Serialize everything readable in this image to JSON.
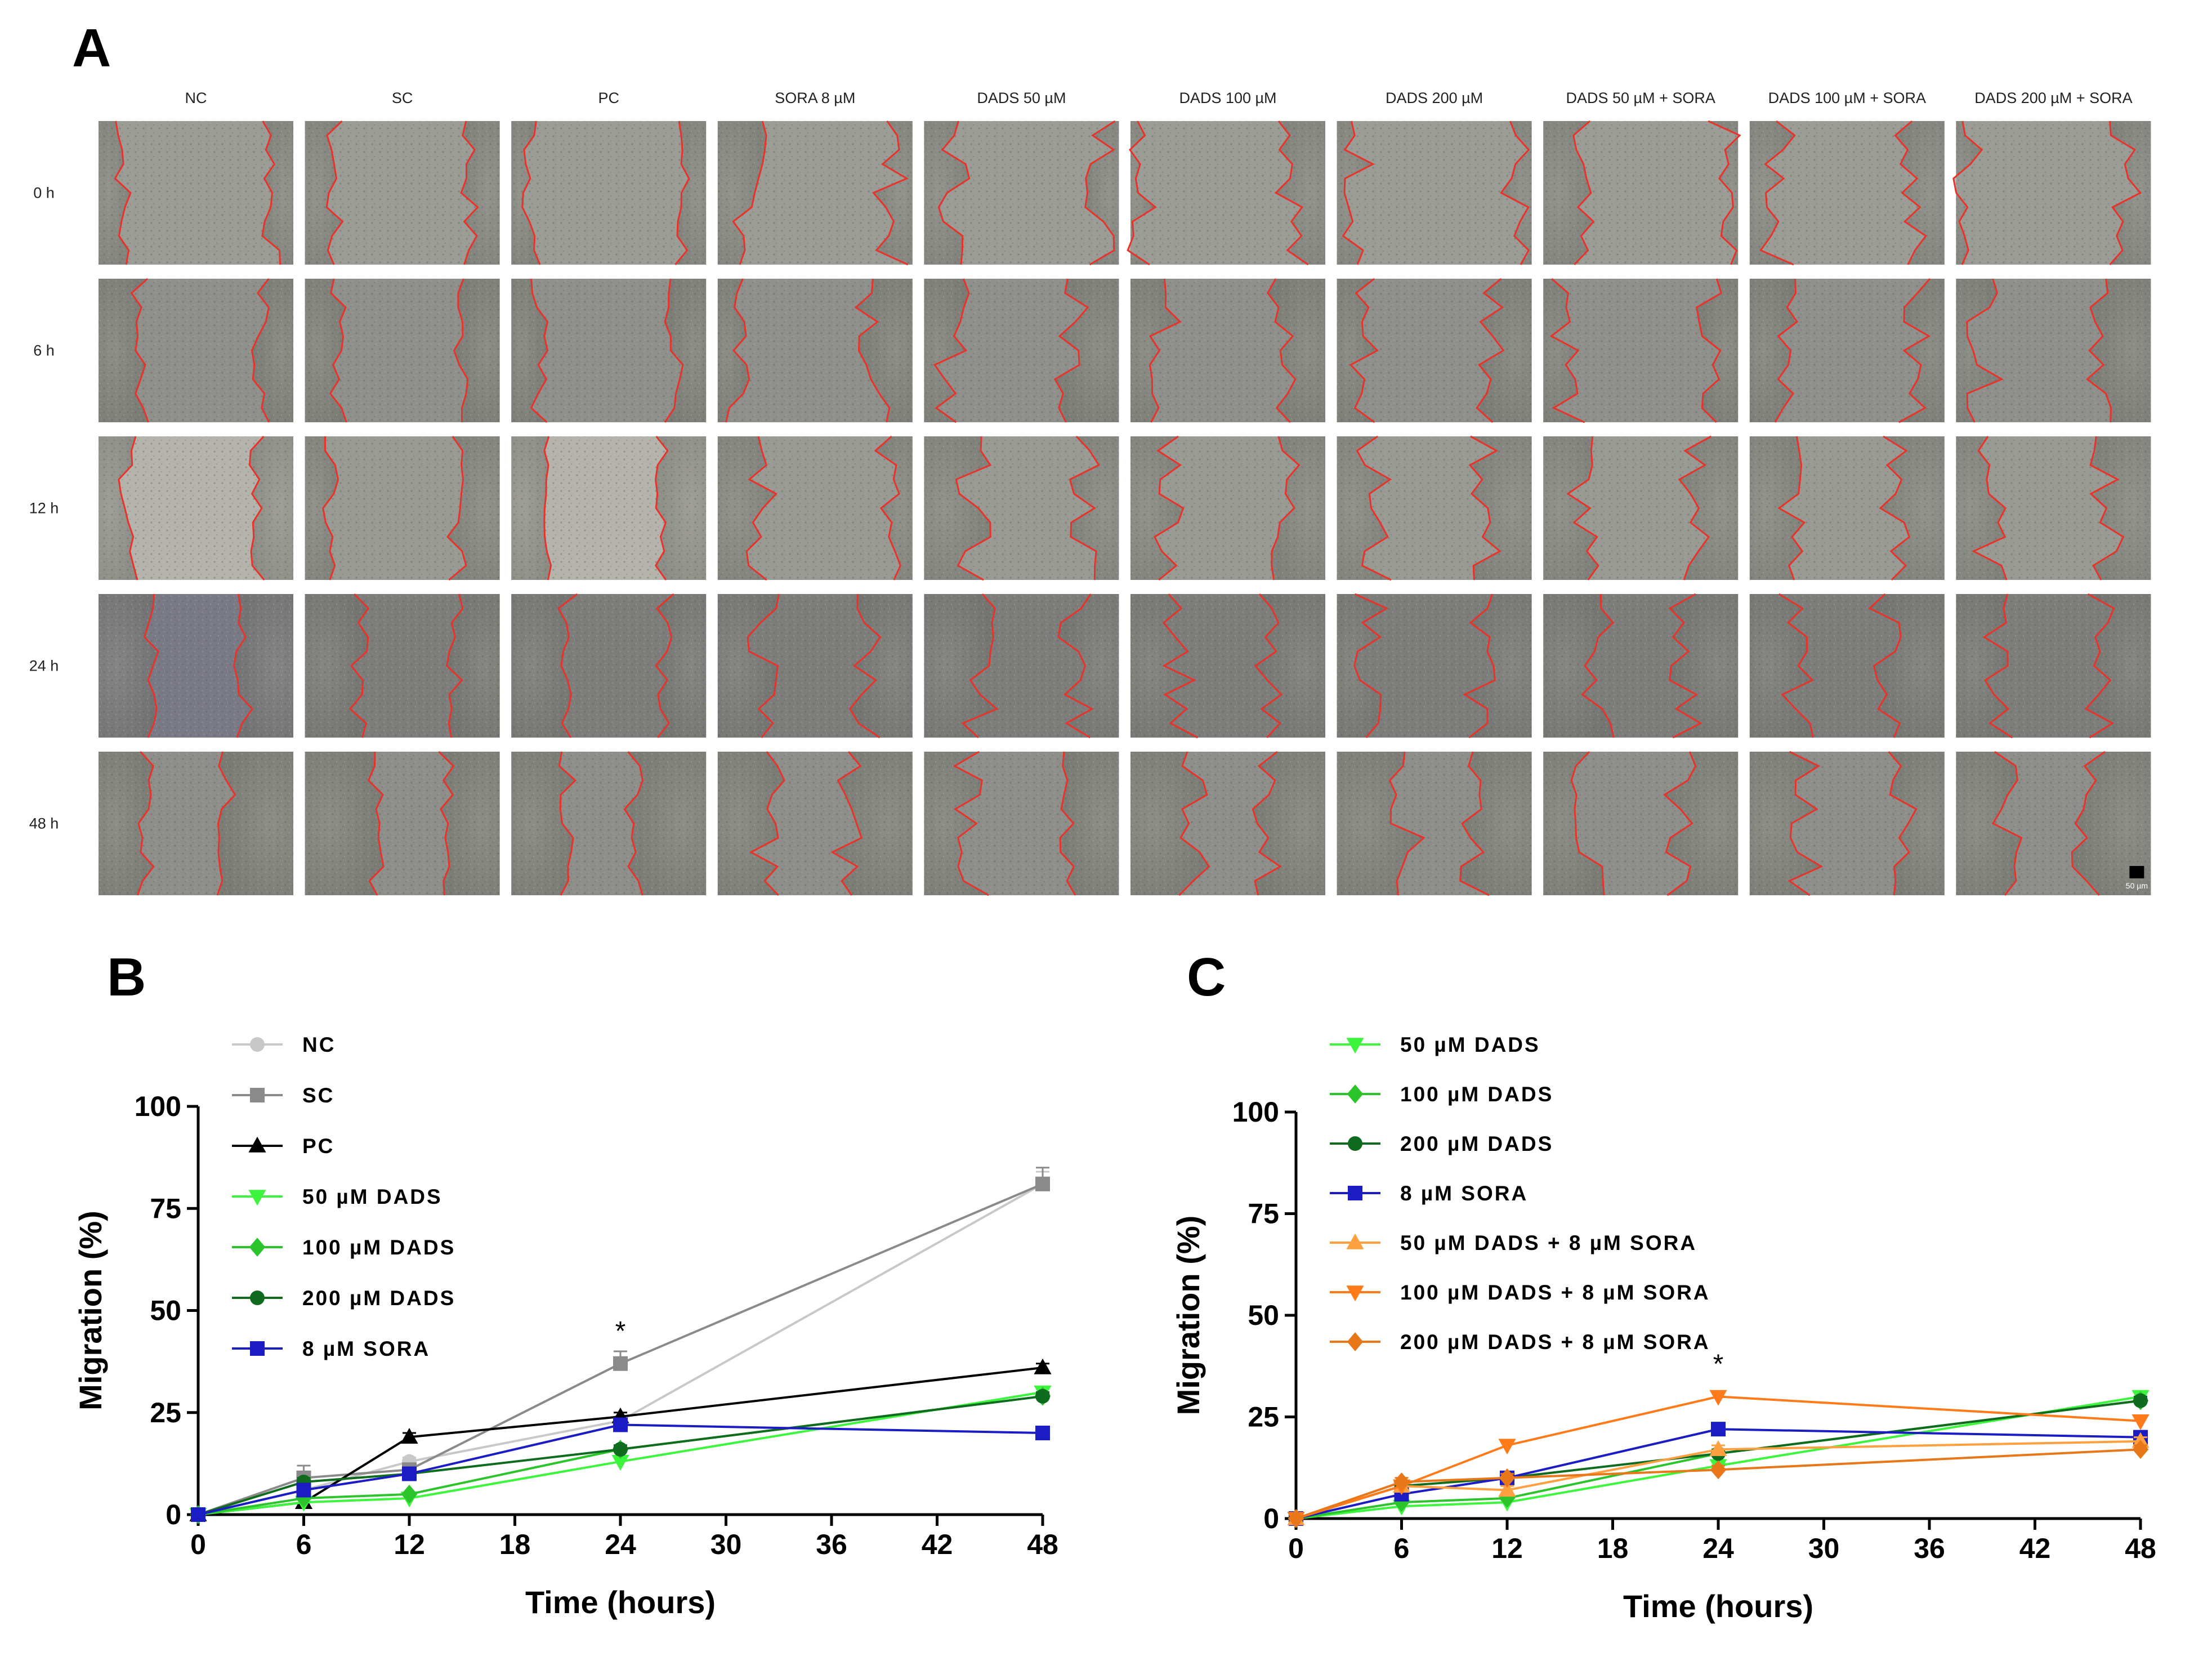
{
  "panels": {
    "a": "A",
    "b": "B",
    "c": "C"
  },
  "panel_a": {
    "columns": [
      "NC",
      "SC",
      "PC",
      "SORA 8 µM",
      "DADS 50 µM",
      "DADS 100 µM",
      "DADS 200 µM",
      "DADS 50 µM + SORA",
      "DADS 100 µM + SORA",
      "DADS 200 µM + SORA"
    ],
    "rows": [
      "0 h",
      "6 h",
      "12 h",
      "24 h",
      "48 h"
    ],
    "scale_bar": "50 µm",
    "wound_color": "#e8332a"
  },
  "chart_data": [
    {
      "type": "line",
      "panel": "B",
      "xlabel": "Time (hours)",
      "ylabel": "Migration (%)",
      "x": [
        0,
        6,
        12,
        24,
        48
      ],
      "xticks": [
        0,
        6,
        12,
        18,
        24,
        30,
        36,
        42,
        48
      ],
      "xticklabels": [
        "0",
        "6",
        "12",
        "18",
        "24",
        "30",
        "36",
        "42",
        "48"
      ],
      "xlim": [
        0,
        48
      ],
      "ylim": [
        0,
        100
      ],
      "yticks": [
        0,
        25,
        50,
        75,
        100
      ],
      "yticklabels": [
        "0",
        "25",
        "50",
        "75",
        "100"
      ],
      "legend_position": "top-left",
      "annotation": {
        "text": "*",
        "x": 24,
        "y": 37
      },
      "series": [
        {
          "name": "NC",
          "color": "#c8c8c8",
          "marker": "circle",
          "values": [
            0,
            6,
            13,
            23,
            81
          ],
          "err": [
            0,
            1,
            1,
            1,
            3
          ]
        },
        {
          "name": "SC",
          "color": "#8a8a8a",
          "marker": "square",
          "values": [
            0,
            9,
            11,
            37,
            81
          ],
          "err": [
            0,
            3,
            1,
            3,
            4
          ]
        },
        {
          "name": "PC",
          "color": "#000000",
          "marker": "triangle",
          "values": [
            0,
            3,
            19,
            24,
            36
          ],
          "err": [
            0,
            1,
            1,
            1,
            1
          ]
        },
        {
          "name": "50 µM DADS",
          "color": "#3df53d",
          "marker": "tri-down",
          "values": [
            0,
            3,
            4,
            13,
            30
          ],
          "err": [
            0,
            0,
            0,
            1,
            1
          ]
        },
        {
          "name": "100 µM DADS",
          "color": "#2bc42b",
          "marker": "diamond",
          "values": [
            0,
            4,
            5,
            16,
            29
          ],
          "err": [
            0,
            0,
            0,
            1,
            1
          ]
        },
        {
          "name": "200 µM DADS",
          "color": "#0f6b1e",
          "marker": "circle",
          "values": [
            0,
            8,
            10,
            16,
            29
          ],
          "err": [
            0,
            1,
            1,
            1,
            1
          ]
        },
        {
          "name": "8 µM SORA",
          "color": "#1c1cc4",
          "marker": "square",
          "values": [
            0,
            6,
            10,
            22,
            20
          ],
          "err": [
            0,
            1,
            1,
            1,
            1
          ]
        }
      ]
    },
    {
      "type": "line",
      "panel": "C",
      "xlabel": "Time (hours)",
      "ylabel": "Migration (%)",
      "x": [
        0,
        6,
        12,
        24,
        48
      ],
      "xticks": [
        0,
        6,
        12,
        18,
        24,
        30,
        36,
        42,
        48
      ],
      "xticklabels": [
        "0",
        "6",
        "12",
        "18",
        "24",
        "30",
        "36",
        "42",
        "48"
      ],
      "xlim": [
        0,
        48
      ],
      "ylim": [
        0,
        100
      ],
      "yticks": [
        0,
        25,
        50,
        75,
        100
      ],
      "yticklabels": [
        "0",
        "25",
        "50",
        "75",
        "100"
      ],
      "legend_position": "top-left",
      "annotation": {
        "text": "*",
        "x": 24,
        "y": 30
      },
      "series": [
        {
          "name": "50 µM DADS",
          "color": "#3df53d",
          "marker": "tri-down",
          "values": [
            0,
            3,
            4,
            13,
            30
          ],
          "err": [
            0,
            0,
            0,
            1,
            1
          ]
        },
        {
          "name": "100 µM DADS",
          "color": "#2bc42b",
          "marker": "diamond",
          "values": [
            0,
            4,
            5,
            16,
            29
          ],
          "err": [
            0,
            0,
            0,
            1,
            1
          ]
        },
        {
          "name": "200 µM DADS",
          "color": "#0f6b1e",
          "marker": "circle",
          "values": [
            0,
            8,
            10,
            16,
            29
          ],
          "err": [
            0,
            1,
            1,
            1,
            1
          ]
        },
        {
          "name": "8 µM SORA",
          "color": "#1c1cc4",
          "marker": "square",
          "values": [
            0,
            6,
            10,
            22,
            20
          ],
          "err": [
            0,
            1,
            1,
            1,
            1
          ]
        },
        {
          "name": "50 µM DADS + 8 µM SORA",
          "color": "#ffa040",
          "marker": "triangle",
          "values": [
            0,
            8,
            7,
            17,
            19
          ],
          "err": [
            0,
            1,
            1,
            1,
            1
          ]
        },
        {
          "name": "100 µM DADS + 8 µM SORA",
          "color": "#ff7b1a",
          "marker": "tri-down",
          "values": [
            0,
            8,
            18,
            30,
            24
          ],
          "err": [
            0,
            1,
            1,
            1,
            1
          ]
        },
        {
          "name": "200 µM DADS + 8 µM SORA",
          "color": "#e8771a",
          "marker": "diamond",
          "values": [
            0,
            9,
            10,
            12,
            17
          ],
          "err": [
            0,
            1,
            1,
            1,
            1
          ]
        }
      ]
    }
  ]
}
